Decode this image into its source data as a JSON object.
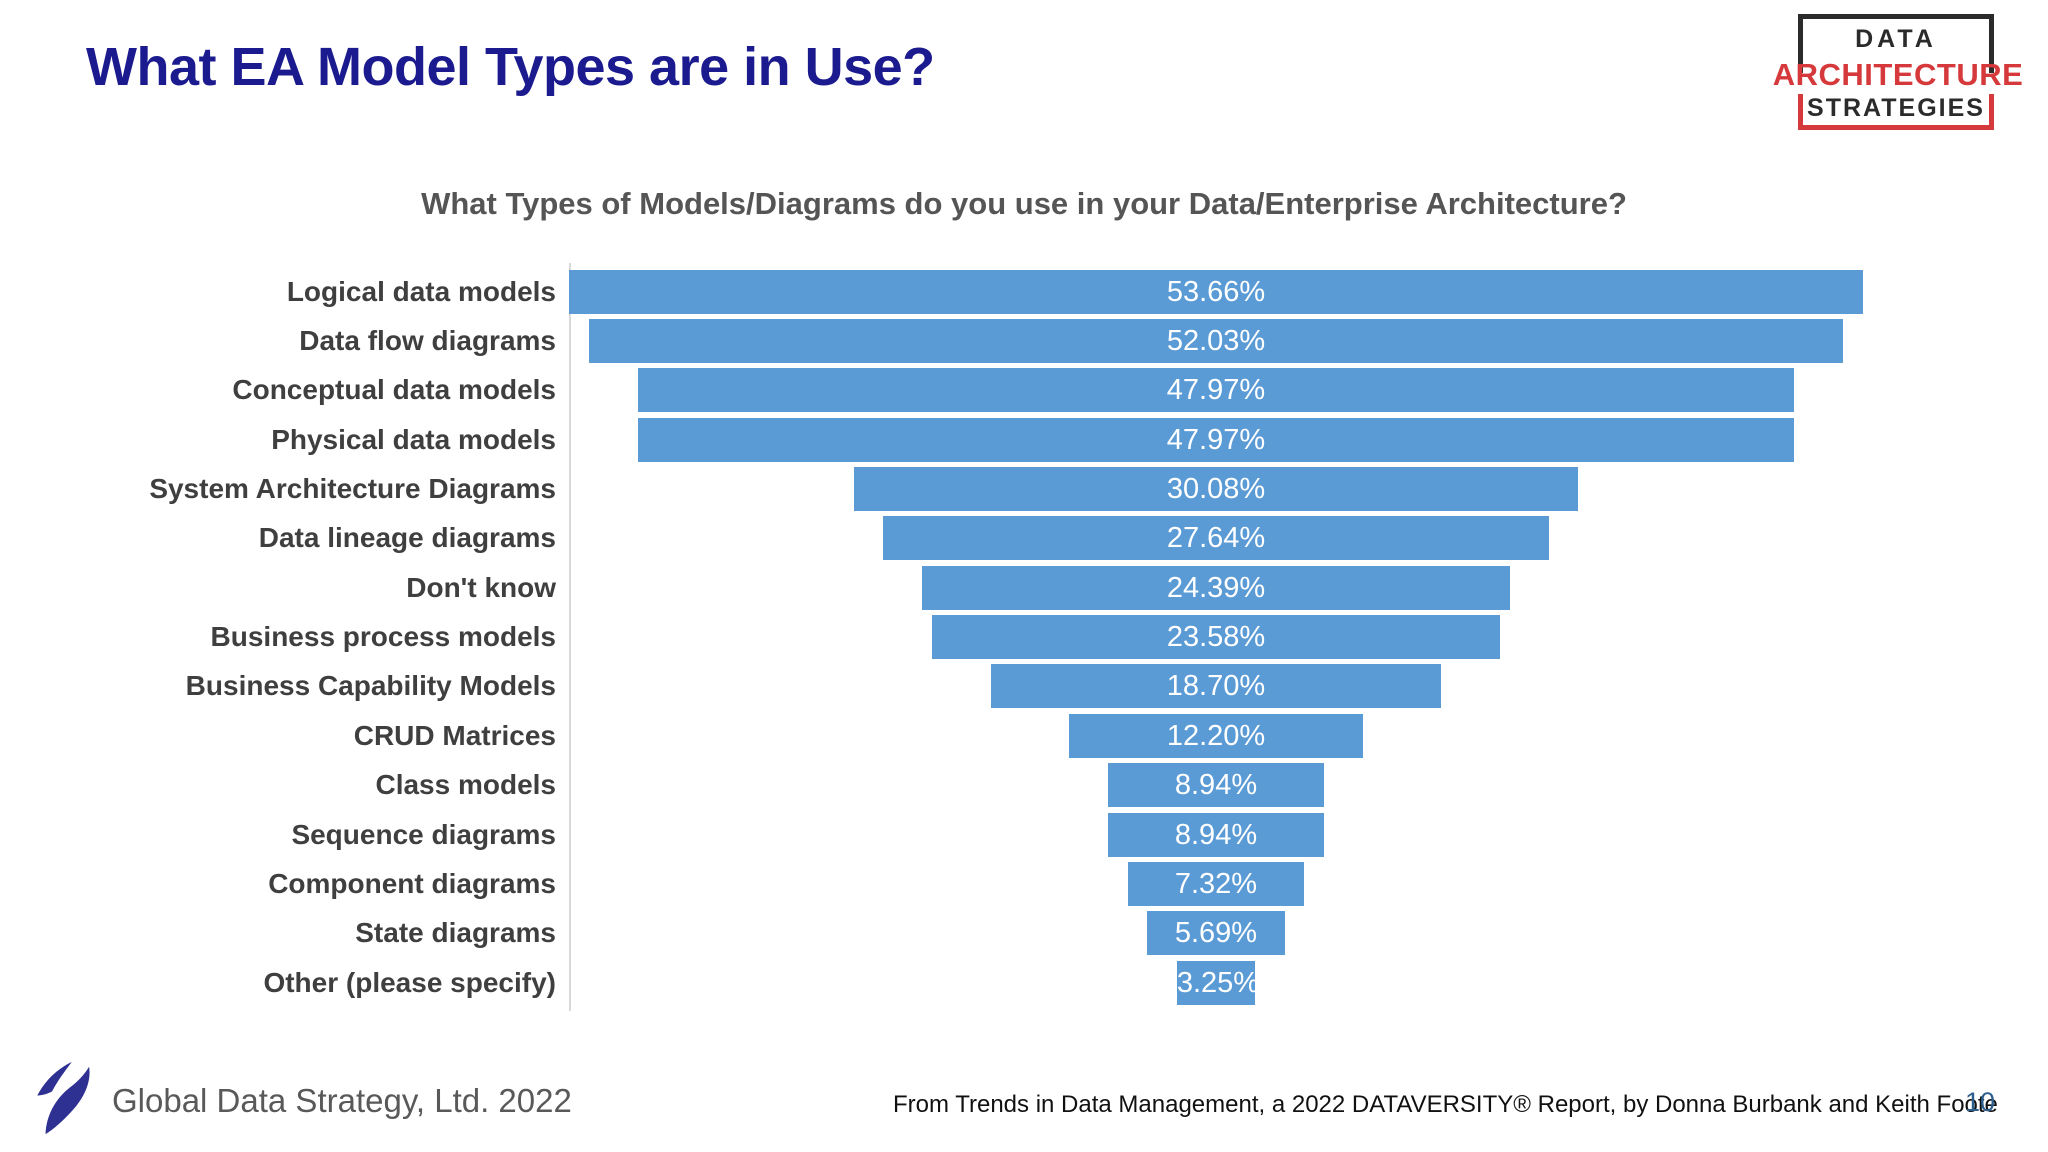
{
  "header": {
    "title": "What EA Model Types are in Use?",
    "logo": {
      "line1": "DATA",
      "line2": "ARCHITECTURE",
      "line3": "STRATEGIES"
    }
  },
  "chart_data": {
    "type": "bar",
    "variant": "centered-funnel-horizontal",
    "title": "What Types of Models/Diagrams do you use in your Data/Enterprise Architecture?",
    "categories": [
      "Logical data models",
      "Data flow diagrams",
      "Conceptual data models",
      "Physical data models",
      "System Architecture Diagrams",
      "Data lineage diagrams",
      "Don't know",
      "Business process models",
      "Business Capability Models",
      "CRUD Matrices",
      "Class models",
      "Sequence diagrams",
      "Component diagrams",
      "State diagrams",
      "Other (please specify)"
    ],
    "values": [
      53.66,
      52.03,
      47.97,
      47.97,
      30.08,
      27.64,
      24.39,
      23.58,
      18.7,
      12.2,
      8.94,
      8.94,
      7.32,
      5.69,
      3.25
    ],
    "labels": [
      "53.66%",
      "52.03%",
      "47.97%",
      "47.97%",
      "30.08%",
      "27.64%",
      "24.39%",
      "23.58%",
      "18.70%",
      "12.20%",
      "8.94%",
      "8.94%",
      "7.32%",
      "5.69%",
      "3.25%"
    ],
    "xlim": [
      0,
      53.66
    ],
    "grid": false,
    "legend": "none",
    "bar_color": "#5b9bd5",
    "value_label_color": "#ffffff",
    "category_label_color": "#3f3f3f",
    "axis_line_color": "#d9d9d9"
  },
  "footer": {
    "company": "Global Data Strategy, Ltd. 2022",
    "citation": "From Trends in Data Management, a 2022 DATAVERSITY® Report, by Donna Burbank and Keith Foote",
    "page_number": "10"
  },
  "colors": {
    "title_navy": "#1b1b8f",
    "logo_red": "#d6393b",
    "logo_black": "#2b2b2b",
    "swoosh_navy": "#2e3192",
    "footer_gray": "#595959",
    "page_number_blue": "#2d5f8e"
  }
}
